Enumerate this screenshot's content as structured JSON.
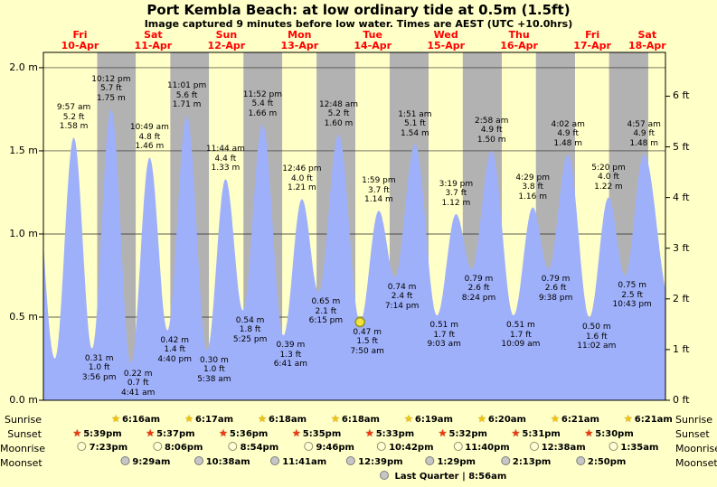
{
  "title": "Port Kembla Beach: at low  ordinary tide at 0.5m (1.5ft)",
  "subtitle": "Image captured 9 minutes before low water. Times are AEST (UTC +10.0hrs)",
  "colors": {
    "page_bg": "#ffffc8",
    "day_band": "#ffffc8",
    "night_band": "#b2b2b2",
    "tide_fill": "#9fb0fa",
    "grid_line": "#2a2a2a",
    "plot_border": "#000000",
    "day_label": "#ff0000",
    "marker_fill": "#f2e43c",
    "marker_stroke": "#94941e"
  },
  "days": [
    {
      "name": "Fri",
      "date": "10-Apr"
    },
    {
      "name": "Sat",
      "date": "11-Apr"
    },
    {
      "name": "Sun",
      "date": "12-Apr"
    },
    {
      "name": "Mon",
      "date": "13-Apr"
    },
    {
      "name": "Tue",
      "date": "14-Apr"
    },
    {
      "name": "Wed",
      "date": "15-Apr"
    },
    {
      "name": "Thu",
      "date": "16-Apr"
    },
    {
      "name": "Fri",
      "date": "17-Apr"
    },
    {
      "name": "Sat",
      "date": "18-Apr"
    }
  ],
  "y_axis_left": {
    "unit": "m",
    "ticks": [
      {
        "label": "0.0 m",
        "value": 0.0
      },
      {
        "label": "0.5 m",
        "value": 0.5
      },
      {
        "label": "1.0 m",
        "value": 1.0
      },
      {
        "label": "1.5 m",
        "value": 1.5
      },
      {
        "label": "2.0 m",
        "value": 2.0
      }
    ]
  },
  "y_axis_right": {
    "unit": "ft",
    "ticks": [
      {
        "label": "0 ft",
        "feet": 0
      },
      {
        "label": "1 ft",
        "feet": 1
      },
      {
        "label": "2 ft",
        "feet": 2
      },
      {
        "label": "3 ft",
        "feet": 3
      },
      {
        "label": "4 ft",
        "feet": 4
      },
      {
        "label": "5 ft",
        "feet": 5
      },
      {
        "label": "6 ft",
        "feet": 6
      }
    ]
  },
  "chart_data": {
    "type": "area",
    "title": "Port Kembla Beach: at low  ordinary tide at 0.5m (1.5ft)",
    "subtitle": "Image captured 9 minutes before low water. Times are AEST (UTC +10.0hrs)",
    "ylabel_left": "m",
    "ylabel_right": "ft",
    "ylim": [
      0,
      2.092
    ],
    "x_range_hours": [
      0,
      204
    ],
    "x_origin": "Fri 10-Apr 00:00",
    "grid": true,
    "current_marker_index": 15,
    "tide_events": [
      {
        "type": "high",
        "t": 9.95,
        "h": 1.58,
        "time": "9:57 am",
        "ft": "5.2 ft",
        "m": "1.58 m"
      },
      {
        "type": "low",
        "t": 15.93,
        "h": 0.31,
        "time": "3:56 pm",
        "ft": "1.0 ft",
        "m": "0.31 m"
      },
      {
        "type": "high",
        "t": 22.2,
        "h": 1.75,
        "time": "10:12 pm",
        "ft": "5.7 ft",
        "m": "1.75 m"
      },
      {
        "type": "low",
        "t": 28.68,
        "h": 0.22,
        "time": "4:41 am",
        "ft": "0.7 ft",
        "m": "0.22 m"
      },
      {
        "type": "high",
        "t": 34.82,
        "h": 1.46,
        "time": "10:49 am",
        "ft": "4.8 ft",
        "m": "1.46 m"
      },
      {
        "type": "low",
        "t": 40.67,
        "h": 0.42,
        "time": "4:40 pm",
        "ft": "1.4 ft",
        "m": "0.42 m"
      },
      {
        "type": "high",
        "t": 47.02,
        "h": 1.71,
        "time": "11:01 pm",
        "ft": "5.6 ft",
        "m": "1.71 m"
      },
      {
        "type": "low",
        "t": 53.63,
        "h": 0.3,
        "time": "5:38 am",
        "ft": "1.0 ft",
        "m": "0.30 m"
      },
      {
        "type": "high",
        "t": 59.73,
        "h": 1.33,
        "time": "11:44 am",
        "ft": "4.4 ft",
        "m": "1.33 m"
      },
      {
        "type": "low",
        "t": 65.42,
        "h": 0.54,
        "time": "5:25 pm",
        "ft": "1.8 ft",
        "m": "0.54 m"
      },
      {
        "type": "high",
        "t": 71.87,
        "h": 1.66,
        "time": "11:52 pm",
        "ft": "5.4 ft",
        "m": "1.66 m"
      },
      {
        "type": "low",
        "t": 78.68,
        "h": 0.39,
        "time": "6:41 am",
        "ft": "1.3 ft",
        "m": "0.39 m"
      },
      {
        "type": "high",
        "t": 84.77,
        "h": 1.21,
        "time": "12:46 pm",
        "ft": "4.0 ft",
        "m": "1.21 m"
      },
      {
        "type": "low",
        "t": 90.25,
        "h": 0.65,
        "time": "6:15 pm",
        "ft": "2.1 ft",
        "m": "0.65 m"
      },
      {
        "type": "high",
        "t": 96.8,
        "h": 1.6,
        "time": "12:48 am",
        "ft": "5.2 ft",
        "m": "1.60 m"
      },
      {
        "type": "low",
        "t": 103.83,
        "h": 0.47,
        "time": "7:50 am",
        "ft": "1.5 ft",
        "m": "0.47 m"
      },
      {
        "type": "high",
        "t": 109.98,
        "h": 1.14,
        "time": "1:59 pm",
        "ft": "3.7 ft",
        "m": "1.14 m"
      },
      {
        "type": "low",
        "t": 115.23,
        "h": 0.74,
        "time": "7:14 pm",
        "ft": "2.4 ft",
        "m": "0.74 m"
      },
      {
        "type": "high",
        "t": 121.85,
        "h": 1.54,
        "time": "1:51 am",
        "ft": "5.1 ft",
        "m": "1.54 m"
      },
      {
        "type": "low",
        "t": 129.05,
        "h": 0.51,
        "time": "9:03 am",
        "ft": "1.7 ft",
        "m": "0.51 m"
      },
      {
        "type": "high",
        "t": 135.32,
        "h": 1.12,
        "time": "3:19 pm",
        "ft": "3.7 ft",
        "m": "1.12 m"
      },
      {
        "type": "low",
        "t": 140.4,
        "h": 0.79,
        "time": "8:24 pm",
        "ft": "2.6 ft",
        "m": "0.79 m"
      },
      {
        "type": "high",
        "t": 146.97,
        "h": 1.5,
        "time": "2:58 am",
        "ft": "4.9 ft",
        "m": "1.50 m"
      },
      {
        "type": "low",
        "t": 154.15,
        "h": 0.51,
        "time": "10:09 am",
        "ft": "1.7 ft",
        "m": "0.51 m"
      },
      {
        "type": "high",
        "t": 160.48,
        "h": 1.16,
        "time": "4:29 pm",
        "ft": "3.8 ft",
        "m": "1.16 m"
      },
      {
        "type": "low",
        "t": 165.63,
        "h": 0.79,
        "time": "9:38 pm",
        "ft": "2.6 ft",
        "m": "0.79 m"
      },
      {
        "type": "high",
        "t": 172.03,
        "h": 1.48,
        "time": "4:02 am",
        "ft": "4.9 ft",
        "m": "1.48 m"
      },
      {
        "type": "low",
        "t": 179.03,
        "h": 0.5,
        "time": "11:02 am",
        "ft": "1.6 ft",
        "m": "0.50 m"
      },
      {
        "type": "high",
        "t": 185.33,
        "h": 1.22,
        "time": "5:20 pm",
        "ft": "4.0 ft",
        "m": "1.22 m"
      },
      {
        "type": "low",
        "t": 190.72,
        "h": 0.75,
        "time": "10:43 pm",
        "ft": "2.5 ft",
        "m": "0.75 m"
      },
      {
        "type": "high",
        "t": 196.95,
        "h": 1.48,
        "time": "4:57 am",
        "ft": "4.9 ft",
        "m": "1.48 m"
      }
    ],
    "edge_points_before": [
      {
        "t": -4,
        "h": 1.7
      },
      {
        "t": 3.75,
        "h": 0.25
      }
    ],
    "edge_points_after": [
      {
        "t": 205.5,
        "h": 0.6
      }
    ]
  },
  "astronomy": {
    "rows": [
      {
        "id": "sunrise",
        "label": "Sunrise",
        "icon": "star",
        "entries": [
          {
            "time": "6:16am",
            "t": 30.27
          },
          {
            "time": "6:17am",
            "t": 54.28
          },
          {
            "time": "6:18am",
            "t": 78.3
          },
          {
            "time": "6:18am",
            "t": 102.3
          },
          {
            "time": "6:19am",
            "t": 126.32
          },
          {
            "time": "6:20am",
            "t": 150.33
          },
          {
            "time": "6:21am",
            "t": 174.35
          },
          {
            "time": "6:21am",
            "t": 198.35
          }
        ]
      },
      {
        "id": "sunset",
        "label": "Sunset",
        "icon": "star",
        "entries": [
          {
            "time": "5:39pm",
            "t": 17.65
          },
          {
            "time": "5:37pm",
            "t": 41.62
          },
          {
            "time": "5:36pm",
            "t": 65.6
          },
          {
            "time": "5:35pm",
            "t": 89.58
          },
          {
            "time": "5:33pm",
            "t": 113.55
          },
          {
            "time": "5:32pm",
            "t": 137.53
          },
          {
            "time": "5:31pm",
            "t": 161.52
          },
          {
            "time": "5:30pm",
            "t": 185.5
          }
        ]
      },
      {
        "id": "moonrise",
        "label": "Moonrise",
        "icon": "moon",
        "entries": [
          {
            "time": "7:23pm",
            "t": 19.38
          },
          {
            "time": "8:06pm",
            "t": 44.1
          },
          {
            "time": "8:54pm",
            "t": 68.9
          },
          {
            "time": "9:46pm",
            "t": 93.77
          },
          {
            "time": "10:42pm",
            "t": 118.7
          },
          {
            "time": "11:40pm",
            "t": 143.67
          },
          {
            "time": "12:38am",
            "t": 168.63
          },
          {
            "time": "1:35am",
            "t": 193.58
          }
        ]
      },
      {
        "id": "moonset",
        "label": "Moonset",
        "icon": "moon",
        "entries": [
          {
            "time": "9:29am",
            "t": 33.48
          },
          {
            "time": "10:38am",
            "t": 58.63
          },
          {
            "time": "11:41am",
            "t": 83.68
          },
          {
            "time": "12:39pm",
            "t": 108.65
          },
          {
            "time": "1:29pm",
            "t": 133.48
          },
          {
            "time": "2:13pm",
            "t": 158.22
          },
          {
            "time": "2:50pm",
            "t": 182.83
          }
        ]
      }
    ]
  },
  "footer": {
    "moon_phase_text": "Last Quarter | 8:56am"
  }
}
